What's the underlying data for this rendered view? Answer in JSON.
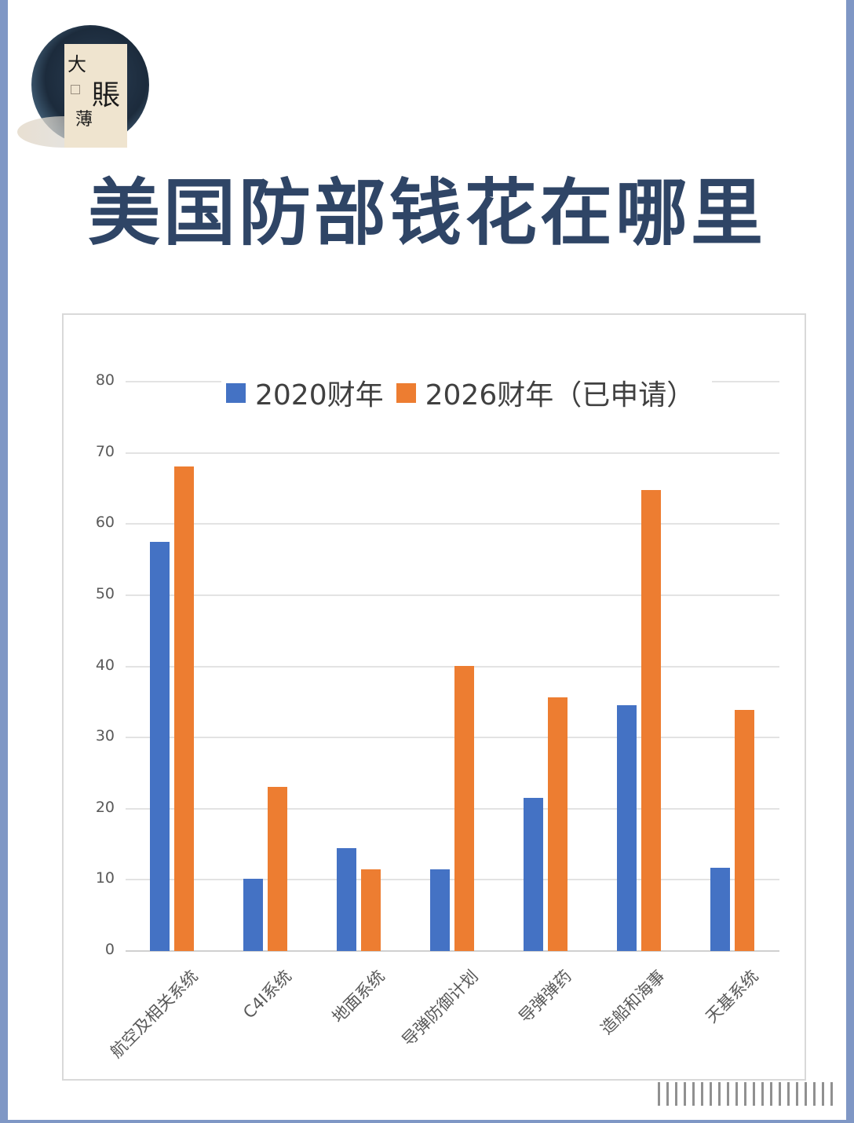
{
  "header": {
    "logo_chars": [
      "大",
      "賬",
      "薄"
    ],
    "title": "美国防部钱花在哪里"
  },
  "legend": {
    "series_1": "2020财年",
    "series_2": "2026财年（已申请）"
  },
  "axis": {
    "y_ticks": [
      "80",
      "70",
      "60",
      "50",
      "40",
      "30",
      "20",
      "10",
      "0"
    ]
  },
  "categories": [
    "航空及相关系统",
    "C4I系统",
    "地面系统",
    "导弹防御计划",
    "导弹弹药",
    "造船和海事",
    "天基系统"
  ],
  "colors": {
    "series_2020": "#4472c4",
    "series_2026": "#ed7d31",
    "title": "#2f4566",
    "frame": "#7f97c5"
  },
  "chart_data": {
    "type": "bar",
    "title": "美国防部钱花在哪里",
    "categories": [
      "航空及相关系统",
      "C4I系统",
      "地面系统",
      "导弹防御计划",
      "导弹弹药",
      "造船和海事",
      "天基系统"
    ],
    "series": [
      {
        "name": "2020财年",
        "color": "#4472c4",
        "values": [
          57.5,
          10.2,
          14.5,
          11.5,
          21.5,
          34.5,
          11.7
        ]
      },
      {
        "name": "2026财年（已申请）",
        "color": "#ed7d31",
        "values": [
          68.1,
          23.1,
          11.5,
          40.1,
          35.6,
          64.8,
          33.9
        ]
      }
    ],
    "xlabel": "",
    "ylabel": "",
    "ylim": [
      0,
      80
    ],
    "yticks": [
      0,
      10,
      20,
      30,
      40,
      50,
      60,
      70,
      80
    ],
    "grid": true,
    "legend_position": "top"
  }
}
